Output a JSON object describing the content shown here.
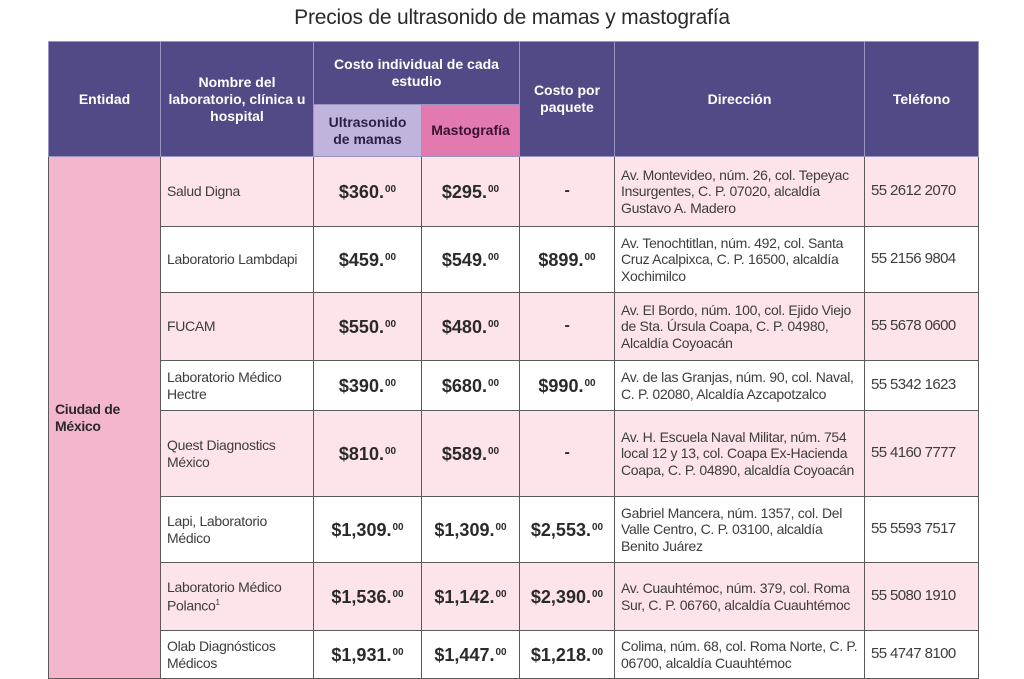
{
  "title": "Precios de ultrasonido de mamas y mastografía",
  "colors": {
    "header_bg": "#524a86",
    "subheader_ultrasonido_bg": "#c1b4dc",
    "subheader_mastografia_bg": "#e27ab0",
    "entidad_bg": "#f3b6cc",
    "row_pink_bg": "#fde3ea",
    "row_white_bg": "#ffffff"
  },
  "header": {
    "entidad": "Entidad",
    "nombre": "Nombre del laboratorio, clínica u hospital",
    "costo_individual": "Costo individual de cada estudio",
    "ultrasonido": "Ultrasonido de mamas",
    "mastografia": "Mastografía",
    "paquete": "Costo por paquete",
    "direccion": "Dirección",
    "telefono": "Teléfono"
  },
  "entidad": "Ciudad de México",
  "rows": [
    {
      "nombre": "Salud Digna",
      "nota": "",
      "ultrasonido": "$360.",
      "mastografia": "$295.",
      "paquete": "-",
      "direccion": "Av. Montevideo, núm. 26, col. Tepeyac Insurgentes, C. P. 07020, alcaldía Gustavo A. Madero",
      "telefono": "55 2612 2070",
      "cents": "00"
    },
    {
      "nombre": "Laboratorio Lambdapi",
      "nota": "",
      "ultrasonido": "$459.",
      "mastografia": "$549.",
      "paquete": "$899.",
      "direccion": "Av. Tenochtitlan, núm. 492, col. Santa Cruz Acalpixca, C. P. 16500, alcaldía Xochimilco",
      "telefono": "55 2156 9804",
      "cents": "00"
    },
    {
      "nombre": "FUCAM",
      "nota": "",
      "ultrasonido": "$550.",
      "mastografia": "$480.",
      "paquete": "-",
      "direccion": "Av. El Bordo, núm. 100, col. Ejido Viejo de Sta. Úrsula Coapa, C. P. 04980, Alcaldía Coyoacán",
      "telefono": "55 5678 0600",
      "cents": "00"
    },
    {
      "nombre": "Laboratorio Médico Hectre",
      "nota": "",
      "ultrasonido": "$390.",
      "mastografia": "$680.",
      "paquete": "$990.",
      "direccion": "Av. de las Granjas, núm. 90, col. Naval, C. P. 02080, Alcaldía Azcapotzalco",
      "telefono": "55 5342 1623",
      "cents": "00"
    },
    {
      "nombre": "Quest Diagnostics México",
      "nota": "",
      "ultrasonido": "$810.",
      "mastografia": "$589.",
      "paquete": "-",
      "direccion": "Av. H. Escuela Naval Militar, núm. 754 local 12 y 13, col. Coapa Ex-Hacienda Coapa, C. P. 04890, alcaldía Coyoacán",
      "telefono": "55 4160 7777",
      "cents": "00"
    },
    {
      "nombre": "Lapi, Laboratorio Médico",
      "nota": "",
      "ultrasonido": "$1,309.",
      "mastografia": "$1,309.",
      "paquete": "$2,553.",
      "direccion": "Gabriel Mancera, núm. 1357, col. Del Valle Centro, C. P. 03100, alcaldía Benito Juárez",
      "telefono": "55 5593 7517",
      "cents": "00"
    },
    {
      "nombre": "Laboratorio Médico Polanco",
      "nota": "1",
      "ultrasonido": "$1,536.",
      "mastografia": "$1,142.",
      "paquete": "$2,390.",
      "direccion": "Av. Cuauhtémoc, núm. 379, col. Roma Sur, C. P. 06760, alcaldía Cuauhtémoc",
      "telefono": "55 5080 1910",
      "cents": "00"
    },
    {
      "nombre": "Olab Diagnósticos Médicos",
      "nota": "",
      "ultrasonido": "$1,931.",
      "mastografia": "$1,447.",
      "paquete": "$1,218.",
      "direccion": "Colima, núm. 68, col. Roma Norte, C. P. 06700, alcaldía Cuauhtémoc",
      "telefono": "55 4747 8100",
      "cents": "00"
    }
  ]
}
